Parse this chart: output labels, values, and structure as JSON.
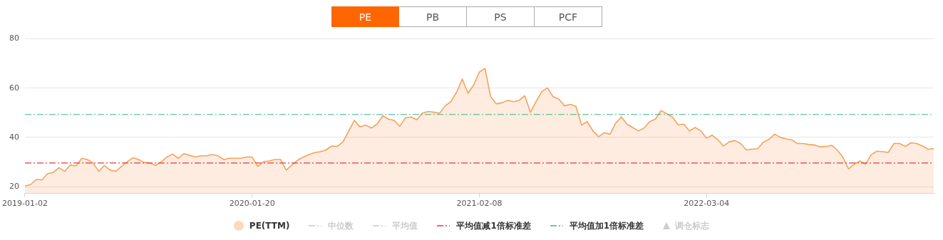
{
  "chart_data": {
    "type": "area",
    "annotations": [
      "PE",
      "PB",
      "PS",
      "PCF"
    ],
    "categories": [
      "2019-01-02",
      null,
      null,
      null,
      null,
      null,
      null,
      null,
      null,
      null,
      null,
      null,
      null,
      null,
      null,
      null,
      null,
      null,
      null,
      null,
      null,
      null,
      null,
      null,
      null,
      null,
      null,
      null,
      null,
      null,
      null,
      null,
      null,
      null,
      null,
      null,
      null,
      null,
      null,
      null,
      "2020-01-20",
      null,
      null,
      null,
      null,
      null,
      null,
      null,
      null,
      null,
      null,
      null,
      null,
      null,
      null,
      null,
      null,
      null,
      null,
      null,
      null,
      null,
      null,
      null,
      null,
      null,
      null,
      null,
      null,
      null,
      null,
      null,
      null,
      null,
      null,
      null,
      null,
      null,
      null,
      null,
      "2021-02-08",
      null,
      null,
      null,
      null,
      null,
      null,
      null,
      null,
      null,
      null,
      null,
      null,
      null,
      null,
      null,
      null,
      null,
      null,
      null,
      null,
      null,
      null,
      null,
      null,
      null,
      null,
      null,
      null,
      null,
      null,
      null,
      null,
      null,
      null,
      null,
      null,
      null,
      null,
      null,
      "2022-03-04",
      null,
      null,
      null,
      null,
      null,
      null,
      null,
      null,
      null,
      null,
      null,
      null,
      null,
      null,
      null,
      null,
      null,
      null,
      null,
      null,
      null,
      null,
      null,
      null,
      null,
      null,
      null,
      null,
      null,
      null,
      null,
      null,
      null,
      null,
      null,
      null,
      null,
      null,
      null,
      null
    ],
    "series": [
      {
        "name": "PE(TTM)",
        "color": "#f5a25d",
        "values": [
          20.3,
          20.8,
          22.9,
          22.7,
          25.3,
          25.8,
          27.7,
          26.2,
          28.8,
          28.4,
          31.5,
          31.0,
          29.6,
          26.2,
          28.6,
          26.7,
          26.2,
          28.2,
          30.1,
          31.7,
          31.0,
          29.8,
          29.6,
          28.6,
          30.1,
          32.0,
          33.2,
          31.5,
          33.4,
          32.7,
          32.0,
          32.5,
          32.5,
          33.0,
          32.5,
          31.0,
          31.5,
          31.5,
          31.5,
          32.0,
          32.0,
          28.2,
          30.1,
          30.4,
          31.0,
          31.0,
          26.7,
          28.8,
          30.7,
          32.0,
          33.0,
          33.8,
          34.2,
          34.9,
          36.5,
          36.3,
          38.2,
          42.6,
          46.9,
          44.2,
          45.0,
          43.8,
          45.4,
          48.8,
          47.4,
          46.9,
          44.5,
          48.0,
          48.3,
          47.1,
          49.9,
          50.5,
          50.2,
          49.8,
          52.8,
          54.5,
          58.4,
          63.7,
          57.9,
          61.3,
          66.5,
          68.0,
          56.5,
          53.6,
          54.1,
          55.0,
          54.5,
          55.0,
          56.9,
          50.2,
          54.6,
          58.6,
          60.1,
          56.5,
          55.5,
          52.8,
          53.4,
          52.6,
          45.0,
          46.4,
          42.6,
          40.3,
          41.9,
          41.3,
          45.7,
          48.3,
          45.4,
          44.0,
          42.6,
          43.8,
          46.4,
          47.4,
          50.9,
          49.6,
          48.3,
          45.1,
          45.4,
          42.6,
          44.0,
          42.6,
          39.7,
          40.9,
          39.0,
          36.5,
          38.2,
          38.7,
          37.5,
          34.9,
          35.2,
          35.4,
          38.0,
          39.2,
          41.3,
          40.0,
          39.4,
          39.0,
          37.5,
          37.5,
          37.1,
          36.9,
          36.1,
          36.3,
          36.8,
          34.9,
          32.0,
          27.2,
          29.1,
          30.4,
          29.1,
          33.0,
          34.4,
          34.2,
          33.9,
          37.5,
          37.5,
          36.3,
          37.8,
          37.5,
          36.5,
          35.2,
          35.4
        ]
      },
      {
        "name": "中位数",
        "type": "line",
        "line_style": "dashed",
        "color": "#cccccc",
        "values": [
          null,
          null,
          null,
          null,
          null,
          null,
          null,
          null,
          null,
          null,
          null,
          null,
          null,
          null,
          null,
          null,
          null,
          null,
          null,
          null,
          null,
          null,
          null,
          null,
          null,
          null,
          null,
          null,
          null,
          null,
          null,
          null,
          null,
          null,
          null,
          null,
          null,
          null,
          null,
          null,
          null,
          null,
          null,
          null,
          null,
          null,
          null,
          null,
          null,
          null,
          null,
          null,
          null,
          null,
          null,
          null,
          null,
          null,
          null,
          null,
          null,
          null,
          null,
          null,
          null,
          null,
          null,
          null,
          null,
          null,
          null,
          null,
          null,
          null,
          null,
          null,
          null,
          null,
          null,
          null,
          null,
          null,
          null,
          null,
          null,
          null,
          null,
          null,
          null,
          null,
          null,
          null,
          null,
          null,
          null,
          null,
          null,
          null,
          null,
          null,
          null,
          null,
          null,
          null,
          null,
          null,
          null,
          null,
          null,
          null,
          null,
          null,
          null,
          null,
          null,
          null,
          null,
          null,
          null,
          null,
          null,
          null,
          null,
          null,
          null,
          null,
          null,
          null,
          null,
          null,
          null,
          null,
          null,
          null,
          null,
          null,
          null,
          null,
          null,
          null,
          null,
          null,
          null,
          null,
          null,
          null,
          null,
          null,
          null,
          null,
          null,
          null,
          null,
          null,
          null,
          null,
          null,
          null,
          null,
          null,
          null
        ]
      },
      {
        "name": "平均值",
        "type": "line",
        "line_style": "dashed",
        "color": "#cccccc",
        "values": [
          null,
          null,
          null,
          null,
          null,
          null,
          null,
          null,
          null,
          null,
          null,
          null,
          null,
          null,
          null,
          null,
          null,
          null,
          null,
          null,
          null,
          null,
          null,
          null,
          null,
          null,
          null,
          null,
          null,
          null,
          null,
          null,
          null,
          null,
          null,
          null,
          null,
          null,
          null,
          null,
          null,
          null,
          null,
          null,
          null,
          null,
          null,
          null,
          null,
          null,
          null,
          null,
          null,
          null,
          null,
          null,
          null,
          null,
          null,
          null,
          null,
          null,
          null,
          null,
          null,
          null,
          null,
          null,
          null,
          null,
          null,
          null,
          null,
          null,
          null,
          null,
          null,
          null,
          null,
          null,
          null,
          null,
          null,
          null,
          null,
          null,
          null,
          null,
          null,
          null,
          null,
          null,
          null,
          null,
          null,
          null,
          null,
          null,
          null,
          null,
          null,
          null,
          null,
          null,
          null,
          null,
          null,
          null,
          null,
          null,
          null,
          null,
          null,
          null,
          null,
          null,
          null,
          null,
          null,
          null,
          null,
          null,
          null,
          null,
          null,
          null,
          null,
          null,
          null,
          null,
          null,
          null,
          null,
          null,
          null,
          null,
          null,
          null,
          null,
          null,
          null,
          null,
          null,
          null,
          null,
          null,
          null,
          null,
          null,
          null,
          null,
          null,
          null,
          null,
          null,
          null,
          null,
          null,
          null,
          null,
          null
        ]
      },
      {
        "name": "调仓标志",
        "type": "scatter",
        "marker": "triangle",
        "color": "#cccccc",
        "values": [
          null,
          null,
          null,
          null,
          null,
          null,
          null,
          null,
          null,
          null,
          null,
          null,
          null,
          null,
          null,
          null,
          null,
          null,
          null,
          null,
          null,
          null,
          null,
          null,
          null,
          null,
          null,
          null,
          null,
          null,
          null,
          null,
          null,
          null,
          null,
          null,
          null,
          null,
          null,
          null,
          null,
          null,
          null,
          null,
          null,
          null,
          null,
          null,
          null,
          null,
          null,
          null,
          null,
          null,
          null,
          null,
          null,
          null,
          null,
          null,
          null,
          null,
          null,
          null,
          null,
          null,
          null,
          null,
          null,
          null,
          null,
          null,
          null,
          null,
          null,
          null,
          null,
          null,
          null,
          null,
          null,
          null,
          null,
          null,
          null,
          null,
          null,
          null,
          null,
          null,
          null,
          null,
          null,
          null,
          null,
          null,
          null,
          null,
          null,
          null,
          null,
          null,
          null,
          null,
          null,
          null,
          null,
          null,
          null,
          null,
          null,
          null,
          null,
          null,
          null,
          null,
          null,
          null,
          null,
          null,
          null,
          null,
          null,
          null,
          null,
          null,
          null,
          null,
          null,
          null,
          null,
          null,
          null,
          null,
          null,
          null,
          null,
          null,
          null,
          null,
          null,
          null,
          null,
          null,
          null,
          null,
          null,
          null,
          null,
          null,
          null,
          null,
          null,
          null,
          null,
          null,
          null,
          null,
          null,
          null,
          null
        ]
      }
    ],
    "ref_lines": [
      {
        "axis": "y",
        "value": 29.6,
        "label": "平均值减1倍标准差",
        "color": "#e8383d",
        "line_style": "dashed"
      },
      {
        "axis": "y",
        "value": 49.3,
        "label": "平均值加1倍标准差",
        "color": "#3bb58a",
        "line_style": "dashed"
      }
    ],
    "ylim": [
      17.4,
      80
    ],
    "yticks": [
      20,
      40,
      60,
      80
    ],
    "grid": "y",
    "legend": "bottom",
    "marker": "none"
  }
}
